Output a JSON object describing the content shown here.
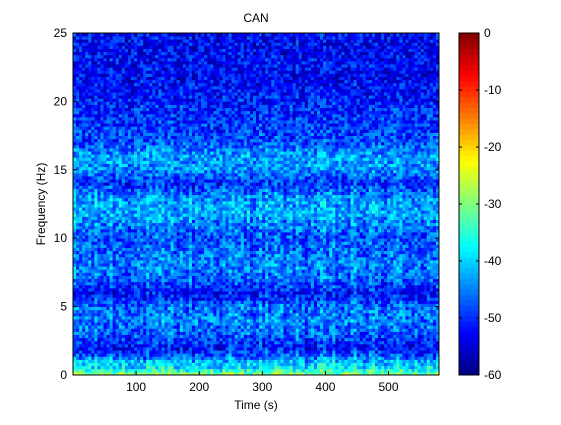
{
  "chart_data": {
    "type": "heatmap",
    "title": "CAN",
    "xlabel": "Time (s)",
    "ylabel": "Frequency (Hz)",
    "xlim": [
      0,
      580
    ],
    "ylim": [
      0,
      25
    ],
    "x_ticks": [
      100,
      200,
      300,
      400,
      500
    ],
    "y_ticks": [
      0,
      5,
      10,
      15,
      20,
      25
    ],
    "colorbar": {
      "range": [
        -60,
        0
      ],
      "ticks": [
        0,
        -10,
        -20,
        -30,
        -40,
        -50,
        -60
      ],
      "colormap": "jet"
    },
    "spectral_profile": {
      "frequency_hz": [
        0,
        0.5,
        1,
        1.5,
        2,
        3,
        4,
        5,
        6,
        7,
        8,
        9,
        10,
        11,
        12,
        13,
        14,
        15,
        16,
        17,
        18,
        19,
        20,
        21,
        22,
        23,
        24,
        25
      ],
      "mean_power_db": [
        -28,
        -38,
        -42,
        -48,
        -52,
        -47,
        -45,
        -46,
        -52,
        -47,
        -45,
        -46,
        -48,
        -45,
        -42,
        -44,
        -50,
        -44,
        -43,
        -48,
        -49,
        -50,
        -51,
        -52,
        -53,
        -52,
        -53,
        -52
      ]
    },
    "grid": false,
    "legend": "none"
  }
}
